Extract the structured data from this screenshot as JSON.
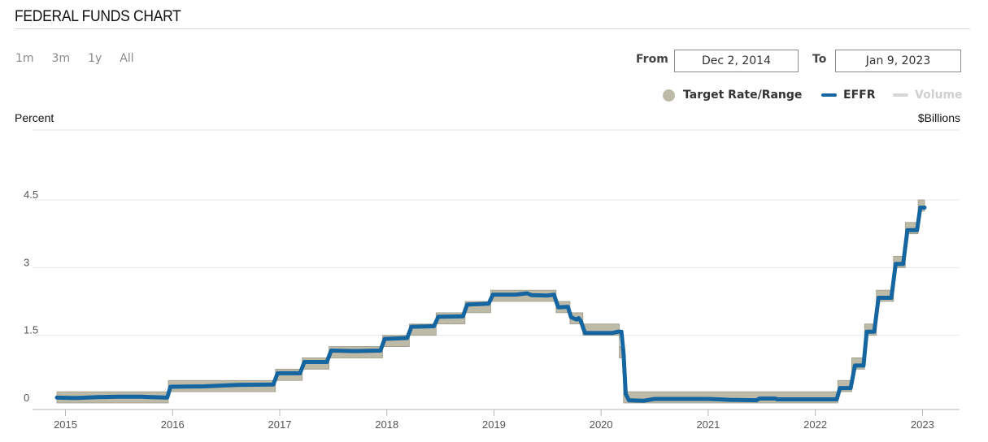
{
  "header": {
    "title": "FEDERAL FUNDS CHART"
  },
  "range_buttons": [
    "1m",
    "3m",
    "1y",
    "All"
  ],
  "date_range": {
    "from_label": "From",
    "from_value": "Dec 2, 2014",
    "to_label": "To",
    "to_value": "Jan 9, 2023"
  },
  "legend": {
    "target": {
      "label": "Target Rate/Range",
      "color": "#bdbaa7"
    },
    "effr": {
      "label": "EFFR",
      "color": "#1565a0"
    },
    "volume": {
      "label": "Volume",
      "color": "#d6d6d6"
    }
  },
  "axes": {
    "left_title": "Percent",
    "right_title": "$Billions"
  },
  "chart_data": {
    "type": "line",
    "x_ticks": [
      "2015",
      "2016",
      "2017",
      "2018",
      "2019",
      "2020",
      "2021",
      "2022",
      "2023"
    ],
    "y_ticks": [
      0,
      1.5,
      3,
      4.5
    ],
    "y_tick_labels": [
      "0",
      "1.5",
      "3",
      "4.5"
    ],
    "xlim": [
      2014.92,
      2023.02
    ],
    "ylim": [
      -0.1,
      6.0
    ],
    "series": [
      {
        "name": "Target Rate/Range",
        "type": "band",
        "steps": [
          {
            "from": 2014.92,
            "lower": 0.0,
            "upper": 0.25
          },
          {
            "from": 2015.96,
            "lower": 0.25,
            "upper": 0.5
          },
          {
            "from": 2016.96,
            "lower": 0.5,
            "upper": 0.75
          },
          {
            "from": 2017.21,
            "lower": 0.75,
            "upper": 1.0
          },
          {
            "from": 2017.46,
            "lower": 1.0,
            "upper": 1.25
          },
          {
            "from": 2017.96,
            "lower": 1.25,
            "upper": 1.5
          },
          {
            "from": 2018.21,
            "lower": 1.5,
            "upper": 1.75
          },
          {
            "from": 2018.46,
            "lower": 1.75,
            "upper": 2.0
          },
          {
            "from": 2018.73,
            "lower": 2.0,
            "upper": 2.25
          },
          {
            "from": 2018.97,
            "lower": 2.25,
            "upper": 2.5
          },
          {
            "from": 2019.58,
            "lower": 2.0,
            "upper": 2.25
          },
          {
            "from": 2019.71,
            "lower": 1.75,
            "upper": 2.0
          },
          {
            "from": 2019.83,
            "lower": 1.5,
            "upper": 1.75
          },
          {
            "from": 2020.17,
            "lower": 1.0,
            "upper": 1.25
          },
          {
            "from": 2020.21,
            "lower": 0.0,
            "upper": 0.25
          },
          {
            "from": 2022.21,
            "lower": 0.25,
            "upper": 0.5
          },
          {
            "from": 2022.34,
            "lower": 0.75,
            "upper": 1.0
          },
          {
            "from": 2022.46,
            "lower": 1.5,
            "upper": 1.75
          },
          {
            "from": 2022.57,
            "lower": 2.25,
            "upper": 2.5
          },
          {
            "from": 2022.73,
            "lower": 3.0,
            "upper": 3.25
          },
          {
            "from": 2022.84,
            "lower": 3.75,
            "upper": 4.0
          },
          {
            "from": 2022.96,
            "lower": 4.25,
            "upper": 4.5
          },
          {
            "from": 2023.02,
            "lower": 4.25,
            "upper": 4.5
          }
        ]
      },
      {
        "name": "EFFR",
        "type": "line",
        "points": [
          [
            2014.92,
            0.12
          ],
          [
            2015.1,
            0.11
          ],
          [
            2015.3,
            0.13
          ],
          [
            2015.5,
            0.14
          ],
          [
            2015.7,
            0.14
          ],
          [
            2015.8,
            0.13
          ],
          [
            2015.95,
            0.12
          ],
          [
            2015.98,
            0.36
          ],
          [
            2016.3,
            0.37
          ],
          [
            2016.6,
            0.4
          ],
          [
            2016.94,
            0.41
          ],
          [
            2016.98,
            0.66
          ],
          [
            2017.19,
            0.66
          ],
          [
            2017.23,
            0.91
          ],
          [
            2017.44,
            0.91
          ],
          [
            2017.48,
            1.16
          ],
          [
            2017.7,
            1.15
          ],
          [
            2017.94,
            1.16
          ],
          [
            2017.98,
            1.42
          ],
          [
            2018.19,
            1.44
          ],
          [
            2018.23,
            1.69
          ],
          [
            2018.44,
            1.7
          ],
          [
            2018.48,
            1.91
          ],
          [
            2018.71,
            1.92
          ],
          [
            2018.75,
            2.18
          ],
          [
            2018.95,
            2.2
          ],
          [
            2018.99,
            2.4
          ],
          [
            2019.2,
            2.4
          ],
          [
            2019.31,
            2.43
          ],
          [
            2019.35,
            2.39
          ],
          [
            2019.5,
            2.38
          ],
          [
            2019.56,
            2.4
          ],
          [
            2019.6,
            2.12
          ],
          [
            2019.69,
            2.13
          ],
          [
            2019.72,
            1.9
          ],
          [
            2019.77,
            1.85
          ],
          [
            2019.79,
            1.88
          ],
          [
            2019.81,
            1.82
          ],
          [
            2019.85,
            1.55
          ],
          [
            2020.1,
            1.55
          ],
          [
            2020.16,
            1.58
          ],
          [
            2020.19,
            1.58
          ],
          [
            2020.21,
            1.09
          ],
          [
            2020.23,
            0.2
          ],
          [
            2020.26,
            0.06
          ],
          [
            2020.4,
            0.05
          ],
          [
            2020.5,
            0.09
          ],
          [
            2020.7,
            0.09
          ],
          [
            2021.0,
            0.09
          ],
          [
            2021.2,
            0.07
          ],
          [
            2021.45,
            0.06
          ],
          [
            2021.48,
            0.1
          ],
          [
            2021.62,
            0.1
          ],
          [
            2021.65,
            0.08
          ],
          [
            2022.2,
            0.08
          ],
          [
            2022.23,
            0.33
          ],
          [
            2022.33,
            0.33
          ],
          [
            2022.37,
            0.83
          ],
          [
            2022.45,
            0.83
          ],
          [
            2022.48,
            1.58
          ],
          [
            2022.55,
            1.58
          ],
          [
            2022.59,
            2.33
          ],
          [
            2022.71,
            2.33
          ],
          [
            2022.75,
            3.08
          ],
          [
            2022.82,
            3.08
          ],
          [
            2022.86,
            3.83
          ],
          [
            2022.95,
            3.83
          ],
          [
            2022.98,
            4.33
          ],
          [
            2023.02,
            4.33
          ]
        ]
      }
    ]
  }
}
